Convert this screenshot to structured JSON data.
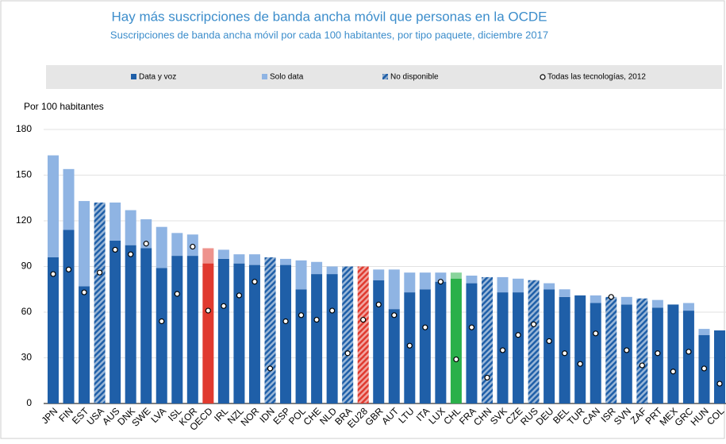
{
  "chart_data": {
    "type": "stacked_bar",
    "title": "Hay más suscripciones de banda ancha móvil que personas en la OCDE",
    "subtitle": "Suscripciones de banda ancha móvil por cada 100 habitantes, por tipo paquete, diciembre 2017",
    "y_label": "Por 100 habitantes",
    "categories": [
      "JPN",
      "FIN",
      "EST",
      "USA",
      "AUS",
      "DNK",
      "SWE",
      "LVA",
      "ISL",
      "KOR",
      "OECD",
      "IRL",
      "NZL",
      "NOR",
      "IDN",
      "ESP",
      "POL",
      "CHE",
      "NLD",
      "BRA",
      "EU28",
      "GBR",
      "AUT",
      "LTU",
      "ITA",
      "LUX",
      "CHL",
      "FRA",
      "CHN",
      "SVK",
      "CZE",
      "RUS",
      "DEU",
      "BEL",
      "TUR",
      "CAN",
      "ISR",
      "SVN",
      "ZAF",
      "PRT",
      "MEX",
      "GRC",
      "HUN",
      "COL"
    ],
    "series": [
      {
        "name": "Data y voz",
        "color": "#1f5fa8",
        "values": [
          96,
          114,
          77,
          null,
          107,
          104,
          102,
          89,
          97,
          97,
          92,
          95,
          92,
          91,
          null,
          91,
          75,
          85,
          85,
          null,
          null,
          81,
          62,
          73,
          75,
          80,
          82,
          79,
          null,
          73,
          73,
          null,
          75,
          70,
          71,
          66,
          null,
          65,
          null,
          63,
          65,
          61,
          45,
          48
        ]
      },
      {
        "name": "Solo data",
        "color": "#8fb4e3",
        "values": [
          67,
          40,
          56,
          null,
          25,
          23,
          19,
          27,
          15,
          14,
          10,
          6,
          6,
          7,
          null,
          4,
          19,
          8,
          5,
          null,
          null,
          7,
          26,
          13,
          11,
          6,
          4,
          5,
          null,
          10,
          9,
          null,
          4,
          5,
          null,
          5,
          null,
          5,
          null,
          5,
          null,
          5,
          4,
          null
        ]
      },
      {
        "name": "No disponible",
        "color": "#1f5fa8",
        "hatch": true,
        "values": [
          null,
          null,
          null,
          132,
          null,
          null,
          null,
          null,
          null,
          null,
          null,
          null,
          null,
          null,
          96,
          null,
          null,
          null,
          null,
          90,
          90,
          null,
          null,
          null,
          null,
          null,
          null,
          null,
          83,
          null,
          null,
          81,
          null,
          null,
          null,
          null,
          70,
          null,
          69,
          null,
          null,
          null,
          null,
          null
        ]
      }
    ],
    "markers": {
      "name": "Todas las tecnologías, 2012",
      "values": [
        85,
        88,
        73,
        86,
        101,
        98,
        105,
        54,
        72,
        103,
        61,
        64,
        71,
        80,
        23,
        54,
        58,
        55,
        61,
        33,
        55,
        65,
        58,
        38,
        50,
        80,
        29,
        50,
        17,
        35,
        45,
        52,
        41,
        33,
        26,
        46,
        70,
        35,
        25,
        33,
        21,
        34,
        23,
        13
      ]
    },
    "highlights": {
      "OECD": "#e03a2f",
      "EU28": "#e03a2f",
      "CHL": "#2ab04a"
    },
    "ylim": [
      0,
      180
    ],
    "yticks": [
      0,
      30,
      60,
      90,
      120,
      150,
      180
    ],
    "grid": true
  }
}
